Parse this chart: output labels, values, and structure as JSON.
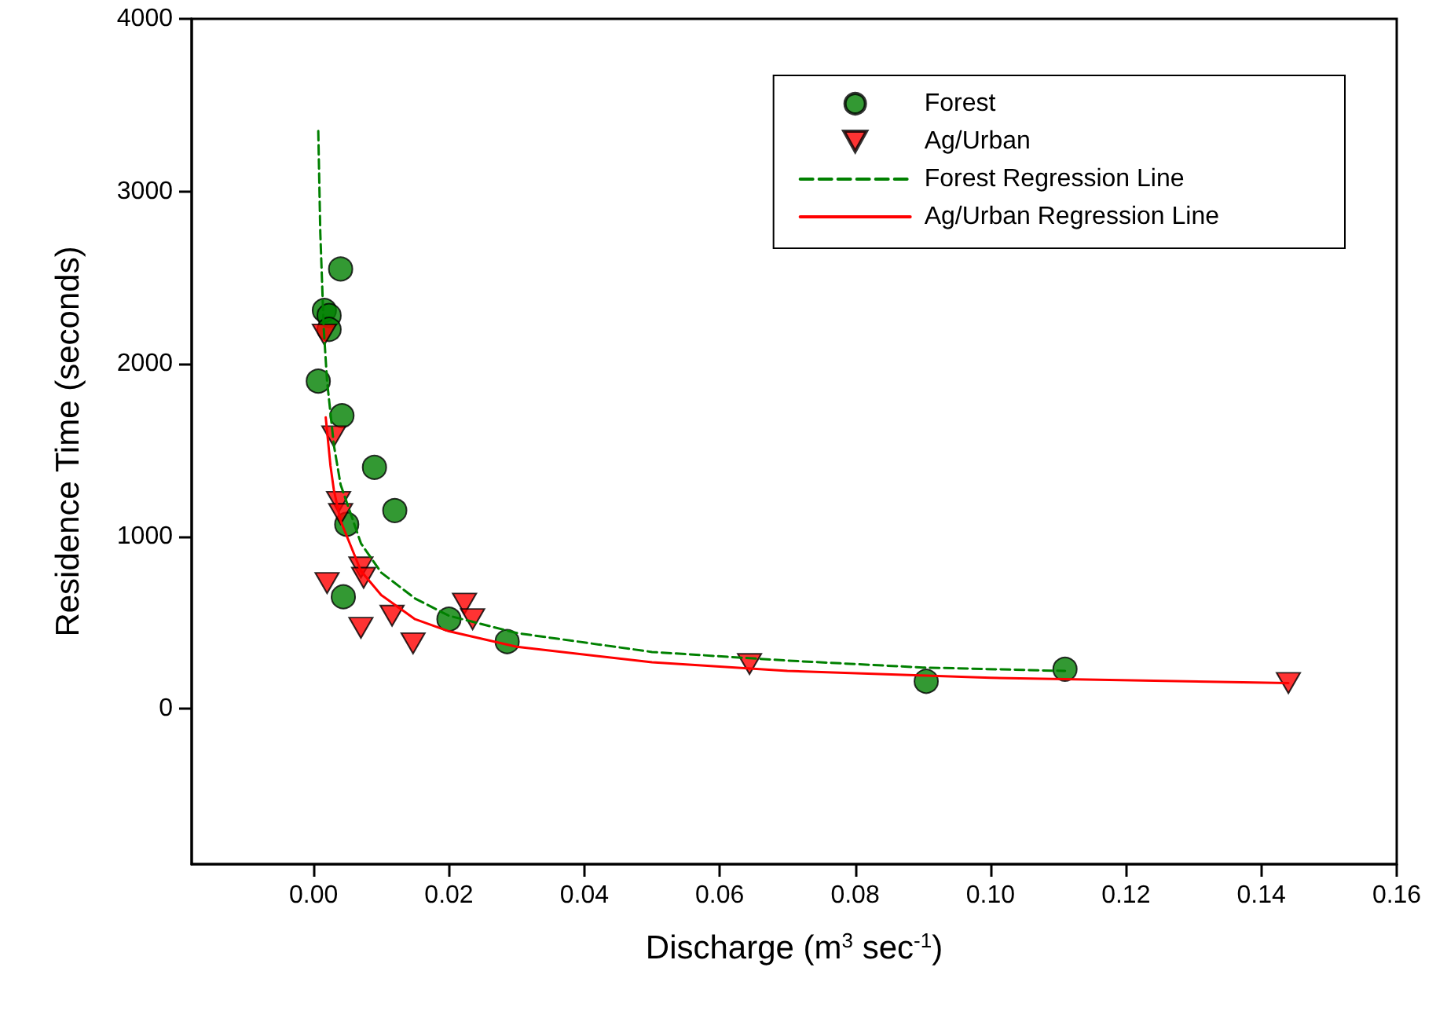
{
  "chart_data": {
    "type": "scatter",
    "xlabel": "Discharge (m$^{3}$ sec$^{-1}$)",
    "ylabel": "Residence Time (seconds)",
    "xlim": [
      -0.018,
      0.16
    ],
    "ylim": [
      -900,
      4000
    ],
    "xticks": [
      {
        "value": 0,
        "label": "0.00"
      },
      {
        "value": 0.02,
        "label": "0.02"
      },
      {
        "value": 0.04,
        "label": "0.04"
      },
      {
        "value": 0.06,
        "label": "0.06"
      },
      {
        "value": 0.08,
        "label": "0.08"
      },
      {
        "value": 0.1,
        "label": "0.10"
      },
      {
        "value": 0.12,
        "label": "0.12"
      },
      {
        "value": 0.14,
        "label": "0.14"
      },
      {
        "value": 0.16,
        "label": "0.16"
      }
    ],
    "yticks": [
      0,
      1000,
      2000,
      3000,
      4000
    ],
    "grid": false,
    "legend": "top right",
    "series": [
      {
        "name": "Forest",
        "marker": "circle",
        "color": "#008000",
        "x": [
          0.004,
          0.0016,
          0.0023,
          0.0023,
          0.0007,
          0.0042,
          0.009,
          0.012,
          0.0049,
          0.0044,
          0.02,
          0.0286,
          0.0905,
          0.111
        ],
        "values": [
          2550,
          2310,
          2280,
          2200,
          1900,
          1700,
          1400,
          1150,
          1070,
          650,
          520,
          390,
          160,
          230
        ]
      },
      {
        "name": "Ag/Urban",
        "marker": "triangle",
        "color": "#ff0000",
        "x": [
          0.0016,
          0.003,
          0.0037,
          0.004,
          0.007,
          0.0074,
          0.002,
          0.007,
          0.0116,
          0.0147,
          0.0223,
          0.0235,
          0.0644,
          0.144
        ],
        "values": [
          2170,
          1580,
          1200,
          1130,
          820,
          760,
          730,
          470,
          540,
          380,
          610,
          520,
          260,
          150
        ]
      },
      {
        "name": "Forest Regression Line",
        "type": "line",
        "marker": "none",
        "line_style": "dashed",
        "color": "#008000",
        "x": [
          0.0007,
          0.001,
          0.0015,
          0.002,
          0.003,
          0.004,
          0.007,
          0.01,
          0.015,
          0.02,
          0.03,
          0.05,
          0.07,
          0.09,
          0.111
        ],
        "values": [
          3350,
          2760,
          2210,
          1900,
          1530,
          1300,
          960,
          790,
          640,
          540,
          440,
          330,
          280,
          240,
          220
        ]
      },
      {
        "name": "Ag/Urban Regression Line",
        "type": "line",
        "marker": "none",
        "line_style": "solid",
        "color": "#ff0000",
        "x": [
          0.0018,
          0.0025,
          0.003,
          0.004,
          0.007,
          0.01,
          0.015,
          0.02,
          0.03,
          0.05,
          0.07,
          0.1,
          0.144
        ],
        "values": [
          1690,
          1410,
          1270,
          1090,
          800,
          660,
          520,
          450,
          360,
          270,
          220,
          180,
          150
        ]
      }
    ]
  }
}
